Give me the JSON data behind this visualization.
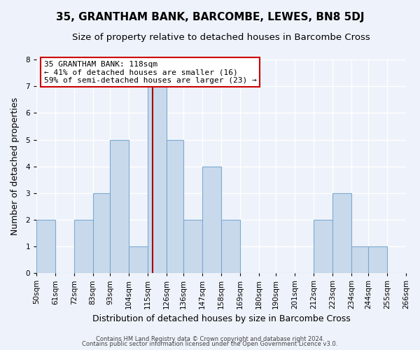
{
  "title": "35, GRANTHAM BANK, BARCOMBE, LEWES, BN8 5DJ",
  "subtitle": "Size of property relative to detached houses in Barcombe Cross",
  "xlabel": "Distribution of detached houses by size in Barcombe Cross",
  "ylabel": "Number of detached properties",
  "bin_edges": [
    50,
    61,
    72,
    83,
    93,
    104,
    115,
    126,
    136,
    147,
    158,
    169,
    180,
    190,
    201,
    212,
    223,
    234,
    244,
    255,
    266
  ],
  "bin_labels": [
    "50sqm",
    "61sqm",
    "72sqm",
    "83sqm",
    "93sqm",
    "104sqm",
    "115sqm",
    "126sqm",
    "136sqm",
    "147sqm",
    "158sqm",
    "169sqm",
    "180sqm",
    "190sqm",
    "201sqm",
    "212sqm",
    "223sqm",
    "234sqm",
    "244sqm",
    "255sqm",
    "266sqm"
  ],
  "counts": [
    2,
    0,
    2,
    3,
    5,
    1,
    7,
    5,
    2,
    4,
    2,
    0,
    0,
    0,
    0,
    2,
    3,
    1,
    1,
    0
  ],
  "bar_color": "#c9d9ec",
  "bar_edge_color": "#7aaad0",
  "marker_bin_index": 6,
  "marker_color": "#aa0000",
  "ylim": [
    0,
    8
  ],
  "yticks": [
    0,
    1,
    2,
    3,
    4,
    5,
    6,
    7,
    8
  ],
  "annotation_title": "35 GRANTHAM BANK: 118sqm",
  "annotation_line1": "← 41% of detached houses are smaller (16)",
  "annotation_line2": "59% of semi-detached houses are larger (23) →",
  "annotation_box_color": "#ffffff",
  "annotation_box_edge": "#cc0000",
  "background_color": "#eef2fa",
  "grid_color": "#ffffff",
  "footer_line1": "Contains HM Land Registry data © Crown copyright and database right 2024.",
  "footer_line2": "Contains public sector information licensed under the Open Government Licence v3.0.",
  "title_fontsize": 11,
  "subtitle_fontsize": 9.5,
  "axis_label_fontsize": 9,
  "tick_fontsize": 7.5,
  "annotation_fontsize": 8,
  "footer_fontsize": 6
}
